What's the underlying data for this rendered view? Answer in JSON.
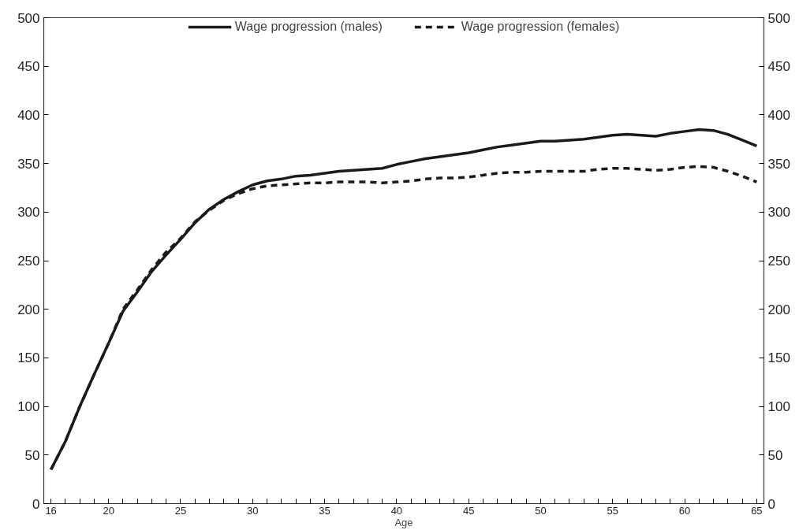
{
  "chart_data": {
    "type": "line",
    "xlabel": "Age",
    "x": [
      16,
      17,
      18,
      19,
      20,
      21,
      22,
      23,
      24,
      25,
      26,
      27,
      28,
      29,
      30,
      31,
      32,
      33,
      34,
      35,
      36,
      37,
      38,
      39,
      40,
      41,
      42,
      43,
      44,
      45,
      46,
      47,
      48,
      49,
      50,
      51,
      52,
      53,
      54,
      55,
      56,
      57,
      58,
      59,
      60,
      61,
      62,
      63,
      64,
      65
    ],
    "series": [
      {
        "name": "Wage progression (males)",
        "color": "#1a1a1a",
        "line_style": "solid",
        "values": [
          35,
          64,
          100,
          133,
          165,
          198,
          218,
          239,
          256,
          272,
          289,
          303,
          313,
          321,
          328,
          332,
          334,
          337,
          338,
          340,
          342,
          343,
          344,
          345,
          349,
          352,
          355,
          357,
          359,
          361,
          364,
          367,
          369,
          371,
          373,
          373,
          374,
          375,
          377,
          379,
          380,
          379,
          378,
          381,
          383,
          385,
          384,
          380,
          374,
          368
        ]
      },
      {
        "name": "Wage progression (females)",
        "color": "#1a1a1a",
        "line_style": "dashed",
        "values": [
          35,
          64,
          100,
          133,
          165,
          200,
          220,
          241,
          259,
          273,
          290,
          302,
          312,
          319,
          324,
          327,
          328,
          329,
          330,
          330,
          331,
          331,
          331,
          330,
          331,
          332,
          334,
          335,
          335,
          336,
          338,
          340,
          341,
          341,
          342,
          342,
          342,
          342,
          344,
          345,
          345,
          344,
          343,
          344,
          346,
          347,
          346,
          342,
          337,
          331
        ]
      }
    ],
    "xlim": [
      15.5,
      65.5
    ],
    "xticks": [
      16,
      {
        "value": 17,
        "label": null
      },
      {
        "value": 18,
        "label": null
      },
      {
        "value": 19,
        "label": null
      },
      20,
      {
        "value": 21,
        "label": null
      },
      {
        "value": 22,
        "label": null
      },
      {
        "value": 23,
        "label": null
      },
      {
        "value": 24,
        "label": null
      },
      25,
      {
        "value": 26,
        "label": null
      },
      {
        "value": 27,
        "label": null
      },
      {
        "value": 28,
        "label": null
      },
      {
        "value": 29,
        "label": null
      },
      30,
      {
        "value": 31,
        "label": null
      },
      {
        "value": 32,
        "label": null
      },
      {
        "value": 33,
        "label": null
      },
      {
        "value": 34,
        "label": null
      },
      35,
      {
        "value": 36,
        "label": null
      },
      {
        "value": 37,
        "label": null
      },
      {
        "value": 38,
        "label": null
      },
      {
        "value": 39,
        "label": null
      },
      40,
      {
        "value": 41,
        "label": null
      },
      {
        "value": 42,
        "label": null
      },
      {
        "value": 43,
        "label": null
      },
      {
        "value": 44,
        "label": null
      },
      45,
      {
        "value": 46,
        "label": null
      },
      {
        "value": 47,
        "label": null
      },
      {
        "value": 48,
        "label": null
      },
      {
        "value": 49,
        "label": null
      },
      50,
      {
        "value": 51,
        "label": null
      },
      {
        "value": 52,
        "label": null
      },
      {
        "value": 53,
        "label": null
      },
      {
        "value": 54,
        "label": null
      },
      55,
      {
        "value": 56,
        "label": null
      },
      {
        "value": 57,
        "label": null
      },
      {
        "value": 58,
        "label": null
      },
      {
        "value": 59,
        "label": null
      },
      60,
      {
        "value": 61,
        "label": null
      },
      {
        "value": 62,
        "label": null
      },
      {
        "value": 63,
        "label": null
      },
      {
        "value": 64,
        "label": null
      },
      65
    ],
    "ylim": [
      0,
      500
    ],
    "yticks": [
      0,
      50,
      100,
      150,
      200,
      250,
      300,
      350,
      400,
      450,
      500
    ],
    "y2lim": [
      0,
      500
    ],
    "y2ticks": [
      0,
      50,
      100,
      150,
      200,
      250,
      300,
      350,
      400,
      450,
      500
    ],
    "grid": false,
    "legend": "top"
  }
}
